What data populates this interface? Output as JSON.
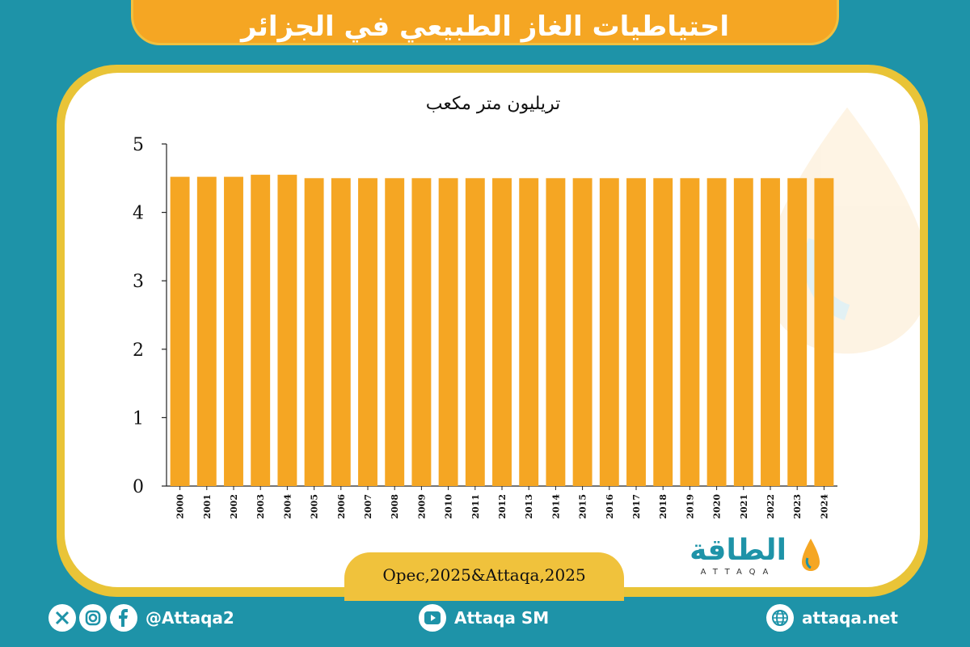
{
  "header": {
    "title": "احتياطيات الغاز الطبيعي في الجزائر"
  },
  "chart_data": {
    "type": "bar",
    "unit": "تريليون متر مكعب",
    "categories": [
      "2000",
      "2001",
      "2002",
      "2003",
      "2004",
      "2005",
      "2006",
      "2007",
      "2008",
      "2009",
      "2010",
      "2011",
      "2012",
      "2013",
      "2014",
      "2015",
      "2016",
      "2017",
      "2018",
      "2019",
      "2020",
      "2021",
      "2022",
      "2023",
      "2024"
    ],
    "values": [
      4.52,
      4.52,
      4.52,
      4.55,
      4.55,
      4.5,
      4.5,
      4.5,
      4.5,
      4.5,
      4.5,
      4.5,
      4.5,
      4.5,
      4.5,
      4.5,
      4.5,
      4.5,
      4.5,
      4.5,
      4.5,
      4.5,
      4.5,
      4.5,
      4.5
    ],
    "yticks": [
      "0",
      "1",
      "2",
      "3",
      "4",
      "5"
    ],
    "ylim": [
      0,
      5
    ],
    "bar_color": "#f5a623",
    "grid": false
  },
  "source": "Opec,2025&Attaqa,2025",
  "logo": {
    "arabic": "الطاقة",
    "english": "ATTAQA"
  },
  "footer": {
    "social_handle": "@Attaqa2",
    "youtube": "Attaqa SM",
    "website": "attaqa.net"
  },
  "colors": {
    "background": "#1e93a8",
    "accent": "#f5a623",
    "frame": "#e9c437"
  }
}
